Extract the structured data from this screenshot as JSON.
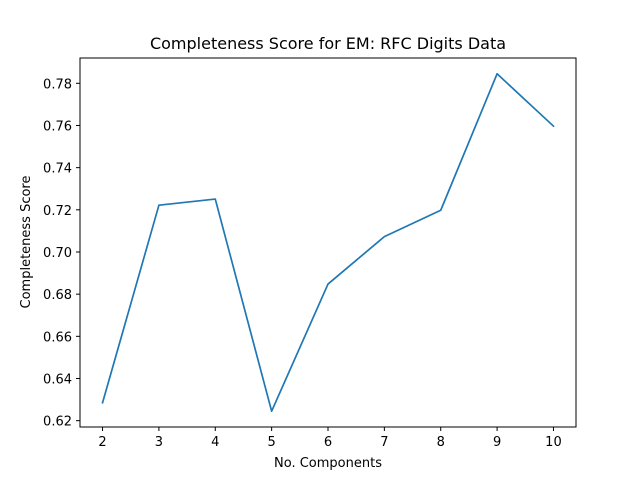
{
  "chart_data": {
    "type": "line",
    "title": "Completeness Score for EM: RFC Digits Data",
    "xlabel": "No. Components",
    "ylabel": "Completeness Score",
    "xlim": [
      1.6,
      10.4
    ],
    "ylim": [
      0.617,
      0.792
    ],
    "x_ticks": [
      2,
      3,
      4,
      5,
      6,
      7,
      8,
      9,
      10
    ],
    "y_ticks": [
      0.62,
      0.64,
      0.66,
      0.68,
      0.7,
      0.72,
      0.74,
      0.76,
      0.78
    ],
    "y_tick_labels": [
      "0.62",
      "0.64",
      "0.66",
      "0.68",
      "0.70",
      "0.72",
      "0.74",
      "0.76",
      "0.78"
    ],
    "grid": false,
    "series": [
      {
        "color": "#1f77b4",
        "x": [
          2,
          3,
          4,
          5,
          6,
          7,
          8,
          9,
          10
        ],
        "y": [
          0.6285,
          0.7222,
          0.7251,
          0.6245,
          0.6848,
          0.7073,
          0.7198,
          0.7845,
          0.7597
        ]
      }
    ]
  }
}
